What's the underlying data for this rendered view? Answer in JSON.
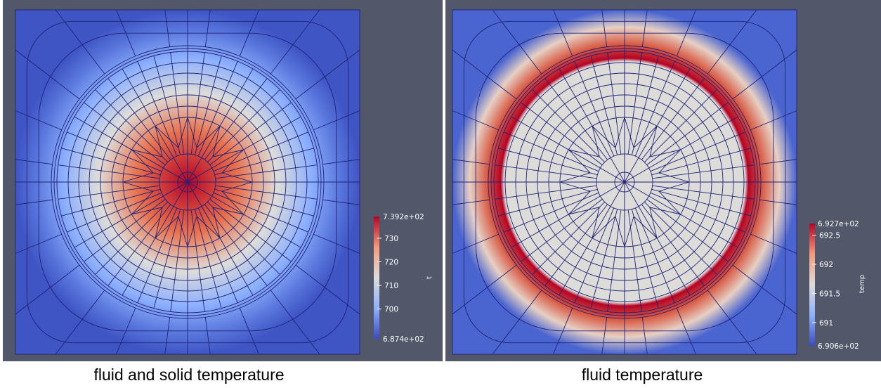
{
  "panels": [
    {
      "caption": "fluid and solid temperature",
      "colorbar": {
        "title": "t",
        "max_label": "7.392e+02",
        "min_label": "6.874e+02",
        "ticks": [
          "730",
          "720",
          "710",
          "700"
        ],
        "range": [
          687.4,
          739.2
        ],
        "tick_values": [
          730,
          720,
          710,
          700
        ]
      }
    },
    {
      "caption": "fluid temperature",
      "colorbar": {
        "title": "temp",
        "max_label": "6.927e+02",
        "min_label": "6.906e+02",
        "ticks": [
          "692.5",
          "692",
          "691.5",
          "691"
        ],
        "range": [
          690.6,
          692.7
        ],
        "tick_values": [
          692.5,
          692,
          691.5,
          691
        ]
      }
    }
  ],
  "colors": {
    "background": "#525769",
    "cool": "#3b4cc0",
    "neutral": "#dddcd8",
    "warm": "#b40426",
    "mesh_line": "#1a1a78"
  }
}
